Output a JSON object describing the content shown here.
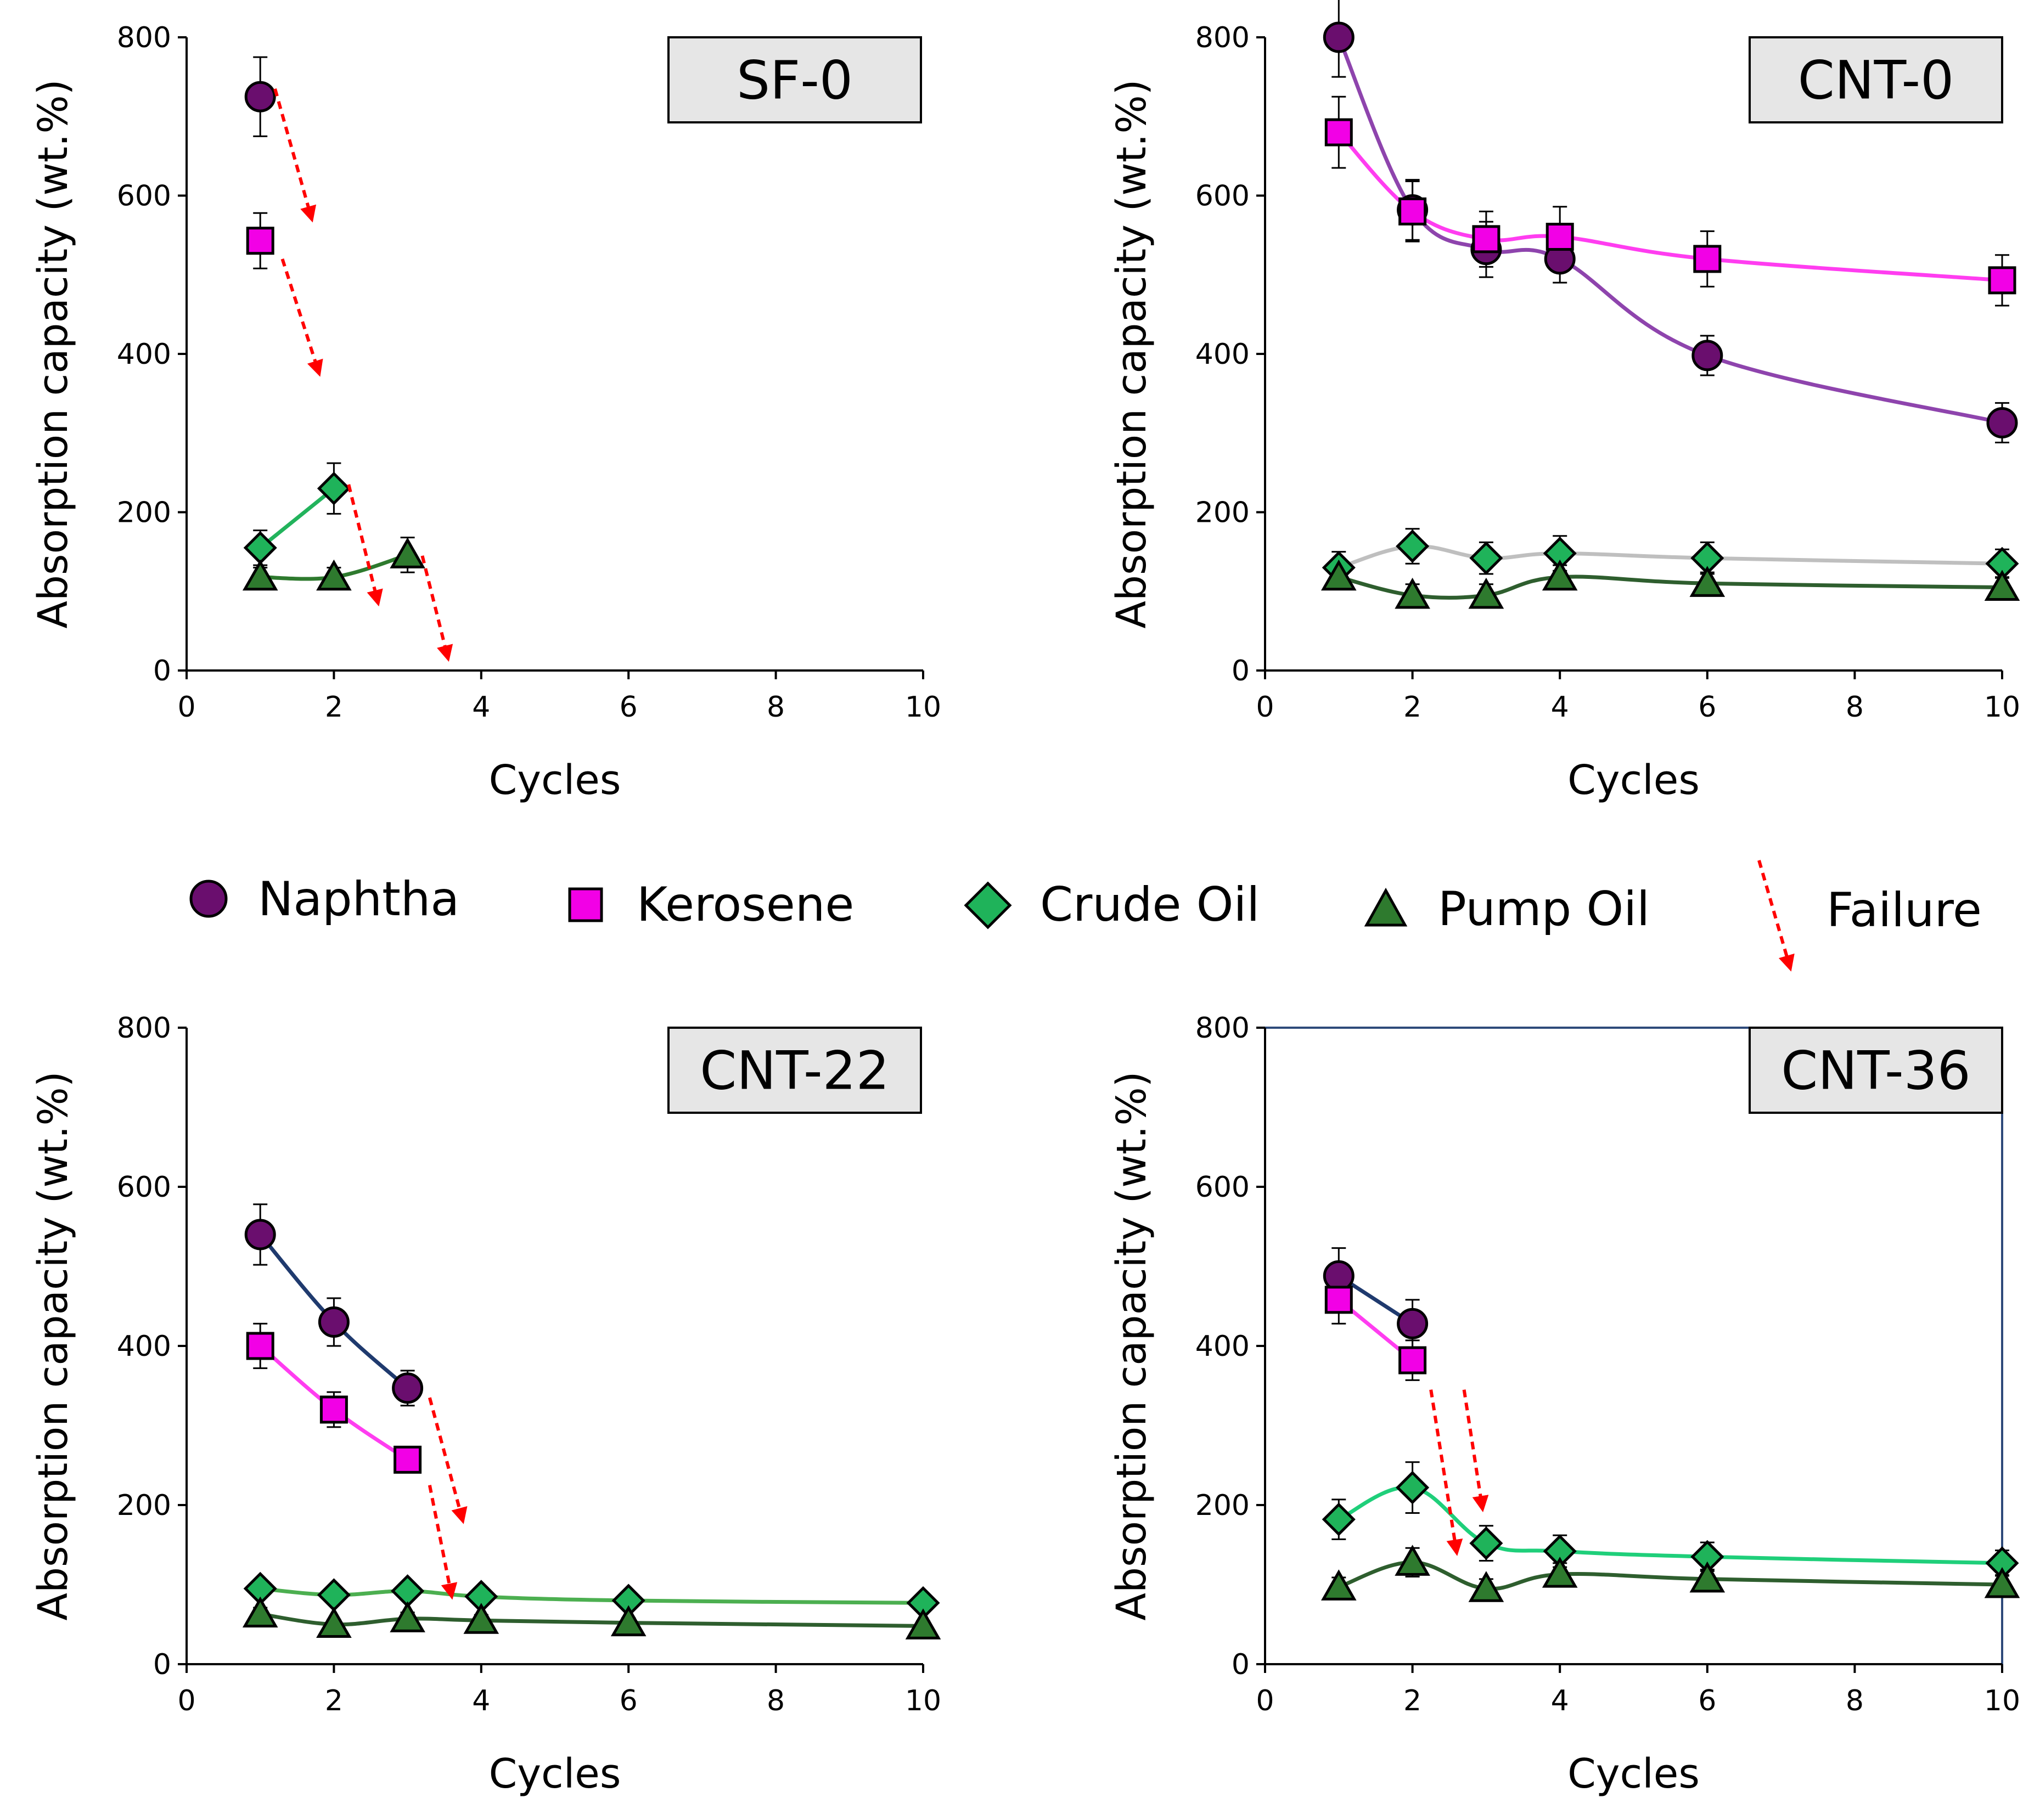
{
  "figure": {
    "legend": {
      "items": [
        {
          "label": "Naphtha",
          "marker": "circle",
          "fill": "#6A0E6E"
        },
        {
          "label": "Kerosene",
          "marker": "square",
          "fill": "#F200E6"
        },
        {
          "label": "Crude Oil",
          "marker": "diamond",
          "fill": "#1FB35A"
        },
        {
          "label": "Pump Oil",
          "marker": "triangle",
          "fill": "#2E7A2E"
        }
      ],
      "failure_label": "Failure",
      "failure_color": "#FF0000"
    }
  },
  "chart_data": [
    {
      "type": "line",
      "title": "SF-0",
      "xlabel": "Cycles",
      "ylabel": "Absorption capacity (wt.%)",
      "xlim": [
        0,
        10
      ],
      "ylim": [
        0,
        800
      ],
      "xticks": [
        0,
        2,
        4,
        6,
        8,
        10
      ],
      "yticks": [
        0,
        200,
        400,
        600,
        800
      ],
      "frame_color": "#000000",
      "series": [
        {
          "name": "Naphtha",
          "marker": "circle",
          "fill": "#6A0E6E",
          "line_color": null,
          "x": [
            1
          ],
          "y": [
            725
          ],
          "err": [
            50
          ]
        },
        {
          "name": "Kerosene",
          "marker": "square",
          "fill": "#F200E6",
          "line_color": null,
          "x": [
            1
          ],
          "y": [
            543
          ],
          "err": [
            35
          ]
        },
        {
          "name": "Crude Oil",
          "marker": "diamond",
          "fill": "#1FB35A",
          "line_color": "#22B35C",
          "x": [
            1,
            2
          ],
          "y": [
            155,
            230
          ],
          "err": [
            22,
            32
          ]
        },
        {
          "name": "Pump Oil",
          "marker": "triangle",
          "fill": "#2E7A2E",
          "line_color": "#2E7A2E",
          "x": [
            1,
            2,
            3
          ],
          "y": [
            118,
            118,
            146
          ],
          "err": [
            12,
            12,
            22
          ]
        }
      ],
      "failures": [
        {
          "from": [
            1.2,
            735
          ],
          "to": [
            1.7,
            570
          ]
        },
        {
          "from": [
            1.3,
            520
          ],
          "to": [
            1.8,
            375
          ]
        },
        {
          "from": [
            2.2,
            235
          ],
          "to": [
            2.6,
            85
          ]
        },
        {
          "from": [
            3.2,
            145
          ],
          "to": [
            3.55,
            15
          ]
        }
      ]
    },
    {
      "type": "line",
      "title": "CNT-0",
      "xlabel": "Cycles",
      "ylabel": "Absorption capacity (wt.%)",
      "xlim": [
        0,
        10
      ],
      "ylim": [
        0,
        800
      ],
      "xticks": [
        0,
        2,
        4,
        6,
        8,
        10
      ],
      "yticks": [
        0,
        200,
        400,
        600,
        800
      ],
      "frame_color": "#000000",
      "series": [
        {
          "name": "Naphtha",
          "marker": "circle",
          "fill": "#6A0E6E",
          "line_color": "#8E44AD",
          "x": [
            1,
            2,
            3,
            4,
            6,
            10
          ],
          "y": [
            800,
            582,
            532,
            520,
            398,
            313
          ],
          "err": [
            50,
            38,
            35,
            30,
            25,
            25
          ]
        },
        {
          "name": "Kerosene",
          "marker": "square",
          "fill": "#F200E6",
          "line_color": "#FF3DF0",
          "x": [
            1,
            2,
            3,
            4,
            6,
            10
          ],
          "y": [
            680,
            580,
            545,
            548,
            520,
            493
          ],
          "err": [
            45,
            38,
            35,
            38,
            35,
            32
          ]
        },
        {
          "name": "Crude Oil",
          "marker": "diamond",
          "fill": "#1FB35A",
          "line_color": "#BFBFBF",
          "x": [
            1,
            2,
            3,
            4,
            6,
            10
          ],
          "y": [
            130,
            157,
            142,
            148,
            142,
            135
          ],
          "err": [
            20,
            22,
            20,
            22,
            20,
            18
          ]
        },
        {
          "name": "Pump Oil",
          "marker": "triangle",
          "fill": "#2E7A2E",
          "line_color": "#2E5E2E",
          "x": [
            1,
            2,
            3,
            4,
            6,
            10
          ],
          "y": [
            118,
            95,
            95,
            118,
            110,
            105
          ],
          "err": [
            15,
            14,
            14,
            15,
            14,
            13
          ]
        }
      ],
      "failures": []
    },
    {
      "type": "line",
      "title": "CNT-22",
      "xlabel": "Cycles",
      "ylabel": "Absorption capacity (wt.%)",
      "xlim": [
        0,
        10
      ],
      "ylim": [
        0,
        800
      ],
      "xticks": [
        0,
        2,
        4,
        6,
        8,
        10
      ],
      "yticks": [
        0,
        200,
        400,
        600,
        800
      ],
      "frame_color": "#000000",
      "series": [
        {
          "name": "Naphtha",
          "marker": "circle",
          "fill": "#6A0E6E",
          "line_color": "#1F3A6E",
          "x": [
            1,
            2,
            3
          ],
          "y": [
            540,
            430,
            347
          ],
          "err": [
            38,
            30,
            22
          ]
        },
        {
          "name": "Kerosene",
          "marker": "square",
          "fill": "#F200E6",
          "line_color": "#FF3DF0",
          "x": [
            1,
            2,
            3
          ],
          "y": [
            400,
            320,
            257
          ],
          "err": [
            28,
            22,
            15
          ]
        },
        {
          "name": "Crude Oil",
          "marker": "diamond",
          "fill": "#1FB35A",
          "line_color": "#4CAF50",
          "x": [
            1,
            2,
            3,
            4,
            6,
            10
          ],
          "y": [
            95,
            87,
            92,
            85,
            80,
            77
          ],
          "err": [
            10,
            8,
            10,
            8,
            8,
            8
          ]
        },
        {
          "name": "Pump Oil",
          "marker": "triangle",
          "fill": "#2E7A2E",
          "line_color": "#2E5E2E",
          "x": [
            1,
            2,
            3,
            4,
            6,
            10
          ],
          "y": [
            63,
            50,
            57,
            55,
            52,
            48
          ],
          "err": [
            8,
            6,
            8,
            7,
            6,
            6
          ]
        }
      ],
      "failures": [
        {
          "from": [
            3.3,
            335
          ],
          "to": [
            3.75,
            180
          ]
        },
        {
          "from": [
            3.3,
            225
          ],
          "to": [
            3.6,
            85
          ]
        }
      ]
    },
    {
      "type": "line",
      "title": "CNT-36",
      "xlabel": "Cycles",
      "ylabel": "Absorption capacity (wt.%)",
      "xlim": [
        0,
        10
      ],
      "ylim": [
        0,
        800
      ],
      "xticks": [
        0,
        2,
        4,
        6,
        8,
        10
      ],
      "yticks": [
        0,
        200,
        400,
        600,
        800
      ],
      "frame_color": "#2E4A7A",
      "series": [
        {
          "name": "Naphtha",
          "marker": "circle",
          "fill": "#6A0E6E",
          "line_color": "#1F3A6E",
          "x": [
            1,
            2
          ],
          "y": [
            488,
            428
          ],
          "err": [
            35,
            30
          ]
        },
        {
          "name": "Kerosene",
          "marker": "square",
          "fill": "#F200E6",
          "line_color": "#FF3DF0",
          "x": [
            1,
            2
          ],
          "y": [
            458,
            382
          ],
          "err": [
            30,
            25
          ]
        },
        {
          "name": "Crude Oil",
          "marker": "diamond",
          "fill": "#1FB35A",
          "line_color": "#1FCF7A",
          "x": [
            1,
            2,
            3,
            4,
            6,
            10
          ],
          "y": [
            182,
            222,
            152,
            142,
            135,
            127
          ],
          "err": [
            25,
            32,
            22,
            20,
            18,
            16
          ]
        },
        {
          "name": "Pump Oil",
          "marker": "triangle",
          "fill": "#2E7A2E",
          "line_color": "#2E5E2E",
          "x": [
            1,
            2,
            3,
            4,
            6,
            10
          ],
          "y": [
            97,
            128,
            95,
            113,
            107,
            100
          ],
          "err": [
            12,
            18,
            12,
            14,
            12,
            12
          ]
        }
      ],
      "failures": [
        {
          "from": [
            2.7,
            345
          ],
          "to": [
            2.95,
            195
          ]
        },
        {
          "from": [
            2.25,
            345
          ],
          "to": [
            2.6,
            140
          ]
        }
      ]
    }
  ]
}
